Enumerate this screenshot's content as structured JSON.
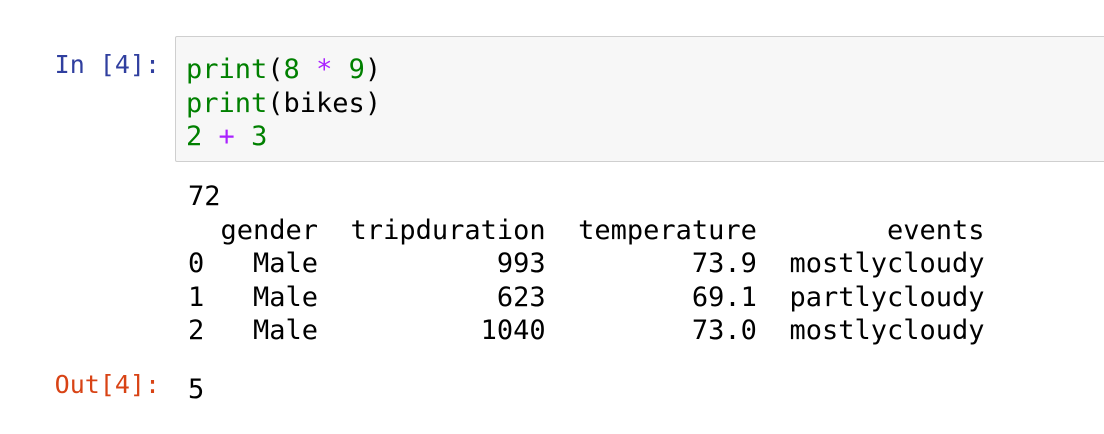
{
  "input_cell": {
    "prompt": "In [4]:",
    "code_lines": [
      [
        {
          "t": "print",
          "c": "kw"
        },
        {
          "t": "(",
          "c": ""
        },
        {
          "t": "8",
          "c": "kw"
        },
        {
          "t": " ",
          "c": ""
        },
        {
          "t": "*",
          "c": "op"
        },
        {
          "t": " ",
          "c": ""
        },
        {
          "t": "9",
          "c": "kw"
        },
        {
          "t": ")",
          "c": ""
        }
      ],
      [
        {
          "t": "print",
          "c": "kw"
        },
        {
          "t": "(bikes)",
          "c": ""
        }
      ],
      [
        {
          "t": "2",
          "c": "kw"
        },
        {
          "t": " ",
          "c": ""
        },
        {
          "t": "+",
          "c": "op"
        },
        {
          "t": " ",
          "c": ""
        },
        {
          "t": "3",
          "c": "kw"
        }
      ]
    ]
  },
  "stdout": {
    "lines": [
      "72",
      "  gender  tripduration  temperature        events",
      "0   Male           993         73.9  mostlycloudy",
      "1   Male           623         69.1  partlycloudy",
      "2   Male          1040         73.0  mostlycloudy"
    ]
  },
  "output_cell": {
    "prompt": "Out[4]:",
    "value": "5"
  },
  "colors": {
    "in_prompt": "#303F9F",
    "out_prompt": "#D84315",
    "keyword": "#008000",
    "operator": "#AA22FF"
  }
}
